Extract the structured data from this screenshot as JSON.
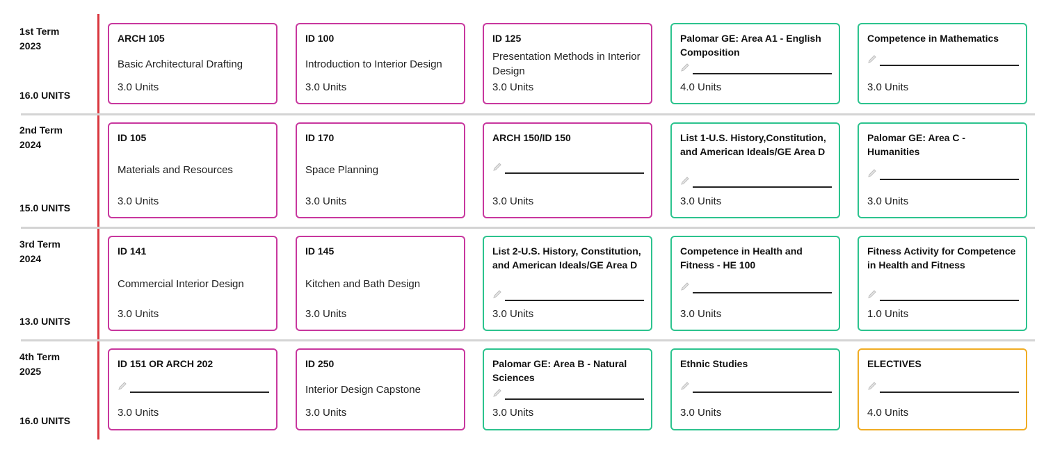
{
  "terms": [
    {
      "name": "1st Term\n2023",
      "units": "16.0 UNITS",
      "courses": [
        {
          "code": "ARCH 105",
          "title": "Basic Architectural Drafting",
          "units": "3.0 Units",
          "kind": "major",
          "blank": false
        },
        {
          "code": "ID 100",
          "title": "Introduction to Interior Design",
          "units": "3.0 Units",
          "kind": "major",
          "blank": false
        },
        {
          "code": "ID 125",
          "title": "Presentation Methods in Interior Design",
          "units": "3.0 Units",
          "kind": "major",
          "blank": false
        },
        {
          "code": "Palomar GE: Area A1 - English Composition",
          "title": "",
          "units": "4.0 Units",
          "kind": "ge",
          "blank": true
        },
        {
          "code": "Competence in Mathematics",
          "title": "",
          "units": "3.0 Units",
          "kind": "ge",
          "blank": true
        }
      ]
    },
    {
      "name": "2nd Term\n2024",
      "units": "15.0 UNITS",
      "courses": [
        {
          "code": "ID 105",
          "title": "Materials and Resources",
          "units": "3.0 Units",
          "kind": "major",
          "blank": false
        },
        {
          "code": "ID 170",
          "title": "Space Planning",
          "units": "3.0 Units",
          "kind": "major",
          "blank": false
        },
        {
          "code": "ARCH 150/ID 150",
          "title": "",
          "units": "3.0 Units",
          "kind": "major",
          "blank": true
        },
        {
          "code": "List 1-U.S. History,Constitution, and American Ideals/GE Area D",
          "title": "",
          "units": "3.0 Units",
          "kind": "ge",
          "blank": true
        },
        {
          "code": "Palomar GE: Area C - Humanities",
          "title": "",
          "units": "3.0 Units",
          "kind": "ge",
          "blank": true
        }
      ]
    },
    {
      "name": "3rd Term\n2024",
      "units": "13.0 UNITS",
      "courses": [
        {
          "code": "ID 141",
          "title": "Commercial Interior Design",
          "units": "3.0 Units",
          "kind": "major",
          "blank": false
        },
        {
          "code": "ID 145",
          "title": "Kitchen and Bath Design",
          "units": "3.0 Units",
          "kind": "major",
          "blank": false
        },
        {
          "code": "List 2-U.S. History, Constitution, and American Ideals/GE Area D",
          "title": "",
          "units": "3.0 Units",
          "kind": "ge",
          "blank": true
        },
        {
          "code": "Competence in Health and Fitness - HE 100",
          "title": "",
          "units": "3.0 Units",
          "kind": "ge",
          "blank": true
        },
        {
          "code": "Fitness Activity for Competence in Health and Fitness",
          "title": "",
          "units": "1.0 Units",
          "kind": "ge",
          "blank": true
        }
      ]
    },
    {
      "name": "4th Term\n2025",
      "units": "16.0 UNITS",
      "courses": [
        {
          "code": "ID 151 OR ARCH 202",
          "title": "",
          "units": "3.0 Units",
          "kind": "major",
          "blank": true
        },
        {
          "code": "ID 250",
          "title": "Interior Design Capstone",
          "units": "3.0 Units",
          "kind": "major",
          "blank": false
        },
        {
          "code": "Palomar GE: Area B - Natural Sciences",
          "title": "",
          "units": "3.0 Units",
          "kind": "ge",
          "blank": true
        },
        {
          "code": "Ethnic Studies",
          "title": "",
          "units": "3.0 Units",
          "kind": "ge",
          "blank": true
        },
        {
          "code": "ELECTIVES",
          "title": "",
          "units": "4.0 Units",
          "kind": "elective",
          "blank": true
        }
      ]
    }
  ],
  "colors": {
    "major_border": "#c8379e",
    "ge_border": "#2cc38e",
    "elective_border": "#f0ac23",
    "timeline": "#d9363e",
    "divider": "#d4d4d4"
  },
  "icons": {
    "blank_field": "pencil-icon"
  }
}
